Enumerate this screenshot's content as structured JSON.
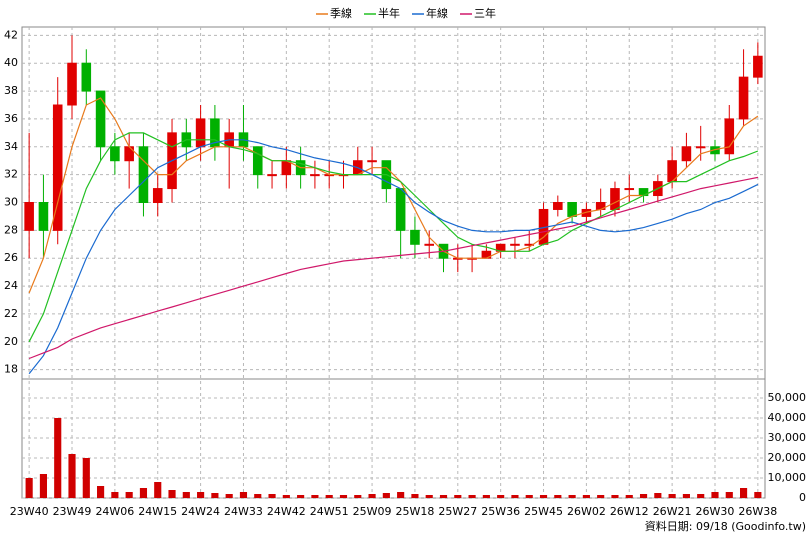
{
  "chart_data": {
    "type": "candlestick",
    "categories": [
      "23W40",
      null,
      null,
      "23W49",
      null,
      null,
      "24W06",
      null,
      null,
      "24W15",
      null,
      null,
      "24W24",
      null,
      null,
      "24W33",
      null,
      null,
      "24W42",
      null,
      null,
      "24W51",
      null,
      null,
      "25W09",
      null,
      null,
      "25W18",
      null,
      null,
      "25W27",
      null,
      null,
      "25W36",
      null,
      null,
      "25W45",
      null,
      null,
      "26W02",
      null,
      null,
      "26W12",
      null,
      null,
      "26W21",
      null,
      null,
      "26W30",
      null,
      null,
      "26W38"
    ],
    "open": [
      28,
      30,
      28,
      37,
      40,
      38,
      34,
      33,
      34,
      30,
      31,
      35,
      34,
      36,
      34,
      35,
      34,
      32,
      32,
      33,
      32,
      32,
      32,
      32,
      33,
      33,
      31,
      28,
      27,
      27,
      26,
      26,
      26,
      26.5,
      27,
      27,
      27,
      29.5,
      30,
      29,
      29.5,
      29.5,
      31,
      31,
      30.5,
      31.5,
      33,
      34,
      34,
      33.5,
      36,
      39
    ],
    "high": [
      35,
      32,
      39,
      42,
      41,
      38,
      35,
      35,
      35,
      32,
      36,
      36,
      37,
      37,
      36,
      37,
      34,
      33,
      34,
      34,
      33,
      33,
      33,
      34,
      34,
      33,
      31,
      29,
      28,
      27,
      27,
      27,
      27,
      27,
      27.5,
      28,
      30,
      30.5,
      30,
      30,
      31,
      31.5,
      32,
      31,
      32,
      34,
      35,
      35.5,
      34.5,
      37,
      41,
      41.5
    ],
    "low": [
      26,
      26,
      27,
      36,
      37,
      33,
      32,
      31,
      29,
      29,
      30,
      33,
      33,
      33,
      31,
      33,
      31,
      31,
      31,
      31,
      31,
      31,
      31,
      32,
      32,
      30,
      26,
      26,
      26,
      25,
      25,
      25,
      26,
      26,
      26,
      26.5,
      27,
      29,
      28.5,
      28.5,
      29,
      29,
      30,
      30,
      30,
      31,
      32.5,
      33,
      33,
      33,
      35.5,
      38.5
    ],
    "close": [
      30,
      28,
      37,
      40,
      38,
      34,
      33,
      34,
      30,
      31,
      35,
      34,
      36,
      34,
      35,
      34,
      32,
      32,
      33,
      32,
      32,
      32,
      32,
      33,
      33,
      31,
      28,
      27,
      27,
      26,
      26,
      26,
      26.5,
      27,
      27,
      27,
      29.5,
      30,
      29,
      29.5,
      30,
      31,
      31,
      30.5,
      31.5,
      33,
      34,
      34,
      33.5,
      36,
      39,
      40.5
    ],
    "up_color": "#e00000",
    "down_color": "#00b000",
    "series": [
      {
        "name": "季線",
        "color": "#e87a1c",
        "values": [
          23.5,
          26,
          30,
          34,
          37,
          37.5,
          36,
          34,
          33,
          32,
          32,
          33,
          33.5,
          34,
          34,
          34,
          33.5,
          33,
          33,
          32.5,
          32.5,
          32,
          32,
          32,
          32.5,
          32.5,
          31.5,
          29.5,
          27.5,
          26.5,
          26,
          26,
          26,
          26.5,
          26.5,
          26.8,
          27.5,
          28.5,
          29,
          29.3,
          29.5,
          30,
          30.5,
          30.5,
          31,
          31.5,
          32.5,
          33.5,
          33.8,
          34,
          35.5,
          36.2
        ]
      },
      {
        "name": "半年",
        "color": "#22c022",
        "values": [
          20,
          22,
          25,
          28,
          31,
          33,
          34.5,
          35,
          35,
          34.5,
          34,
          34.5,
          34.5,
          34.5,
          34,
          33.8,
          33.5,
          33,
          33,
          32.8,
          32.5,
          32.2,
          32,
          32,
          32,
          32,
          31.5,
          30.5,
          29.5,
          28.5,
          27.5,
          27,
          26.8,
          26.5,
          26.5,
          26.5,
          27,
          27.3,
          28,
          28.5,
          29,
          29.5,
          30,
          30.5,
          31,
          31.5,
          31.5,
          32,
          32.5,
          33,
          33.3,
          33.7
        ]
      },
      {
        "name": "年線",
        "color": "#1a6ad0",
        "values": [
          17.7,
          19,
          21,
          23.5,
          26,
          28,
          29.5,
          30.5,
          31.5,
          32.5,
          33,
          33.5,
          34,
          34.3,
          34.5,
          34.5,
          34.3,
          34,
          33.8,
          33.5,
          33.2,
          33,
          32.8,
          32.5,
          32,
          31.5,
          31,
          30,
          29.3,
          28.7,
          28.3,
          28,
          27.9,
          27.9,
          28,
          28,
          28.2,
          28.4,
          28.6,
          28.3,
          28,
          27.9,
          28,
          28.2,
          28.5,
          28.8,
          29.2,
          29.5,
          30,
          30.3,
          30.8,
          31.3
        ]
      },
      {
        "name": "三年",
        "color": "#d0186a",
        "values": [
          18.8,
          19.2,
          19.6,
          20.2,
          20.6,
          21,
          21.3,
          21.6,
          21.9,
          22.2,
          22.5,
          22.8,
          23.1,
          23.4,
          23.7,
          24,
          24.3,
          24.6,
          24.9,
          25.2,
          25.4,
          25.6,
          25.8,
          25.9,
          26,
          26.1,
          26.2,
          26.3,
          26.4,
          26.5,
          26.7,
          26.9,
          27.1,
          27.3,
          27.5,
          27.7,
          27.9,
          28.1,
          28.3,
          28.6,
          28.9,
          29.2,
          29.5,
          29.8,
          30.1,
          30.4,
          30.7,
          31,
          31.2,
          31.4,
          31.6,
          31.8
        ]
      }
    ],
    "ylim": [
      17.4,
      42.6
    ],
    "yticks": [
      18,
      20,
      22,
      24,
      26,
      28,
      30,
      32,
      34,
      36,
      38,
      40,
      42
    ],
    "grid": true,
    "volume": {
      "color": "#d00000",
      "values": [
        10000,
        12000,
        40000,
        22000,
        20000,
        6000,
        3000,
        3000,
        5000,
        8000,
        4000,
        3000,
        3000,
        2500,
        2000,
        3000,
        2000,
        2000,
        1500,
        1500,
        1500,
        1500,
        1500,
        1500,
        2000,
        2500,
        3000,
        2000,
        1500,
        1500,
        1500,
        1500,
        1500,
        1500,
        1500,
        1500,
        1500,
        1500,
        1500,
        1500,
        1500,
        1500,
        1500,
        2000,
        2500,
        2000,
        2000,
        2000,
        3000,
        3000,
        5000,
        3000
      ],
      "ylim": [
        0,
        59000
      ],
      "yticks": [
        0,
        {
          "value": 10000,
          "label": "10,000"
        },
        {
          "value": 20000,
          "label": "20,000"
        },
        {
          "value": 30000,
          "label": "30,000"
        },
        {
          "value": 40000,
          "label": "40,000"
        },
        {
          "value": 50000,
          "label": "50,000"
        }
      ]
    },
    "footer": "資料日期: 09/18 (Goodinfo.tw)"
  }
}
